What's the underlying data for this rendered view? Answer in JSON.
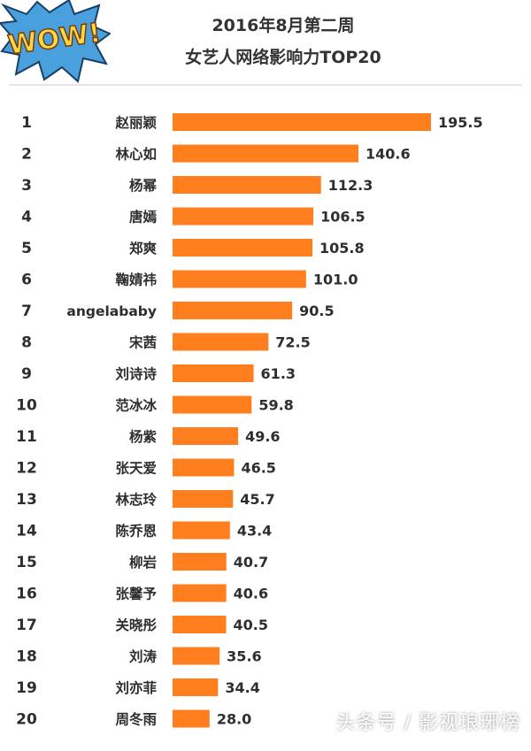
{
  "logo": {
    "text": "WOW!"
  },
  "title": {
    "line1": "2016年8月第二周",
    "line2": "女艺人网络影响力TOP20"
  },
  "colors": {
    "bar": "#ff7f1f",
    "logo_fill": "#ffd84a",
    "logo_burst": "#4aa0dd"
  },
  "chart_data": {
    "type": "bar",
    "orientation": "horizontal",
    "title": "2016年8月第二周 女艺人网络影响力TOP20",
    "ranks": [
      1,
      2,
      3,
      4,
      5,
      6,
      7,
      8,
      9,
      10,
      11,
      12,
      13,
      14,
      15,
      16,
      17,
      18,
      19,
      20
    ],
    "categories": [
      "赵丽颖",
      "林心如",
      "杨幂",
      "唐嫣",
      "郑爽",
      "鞠婧祎",
      "angelababy",
      "宋茜",
      "刘诗诗",
      "范冰冰",
      "杨紫",
      "张天爱",
      "林志玲",
      "陈乔恩",
      "柳岩",
      "张馨予",
      "关晓彤",
      "刘涛",
      "刘亦菲",
      "周冬雨"
    ],
    "values": [
      195.5,
      140.6,
      112.3,
      106.5,
      105.8,
      101.0,
      90.5,
      72.5,
      61.3,
      59.8,
      49.6,
      46.5,
      45.7,
      43.4,
      40.7,
      40.6,
      40.5,
      35.6,
      34.4,
      28.0
    ],
    "labels": [
      "195.5",
      "140.6",
      "112.3",
      "106.5",
      "105.8",
      "101.0",
      "90.5",
      "72.5",
      "61.3",
      "59.8",
      "49.6",
      "46.5",
      "45.7",
      "43.4",
      "40.7",
      "40.6",
      "40.5",
      "35.6",
      "34.4",
      "28.0"
    ],
    "grid": false,
    "legend": "none"
  },
  "watermark": "头条号 / 影视琅琊榜"
}
